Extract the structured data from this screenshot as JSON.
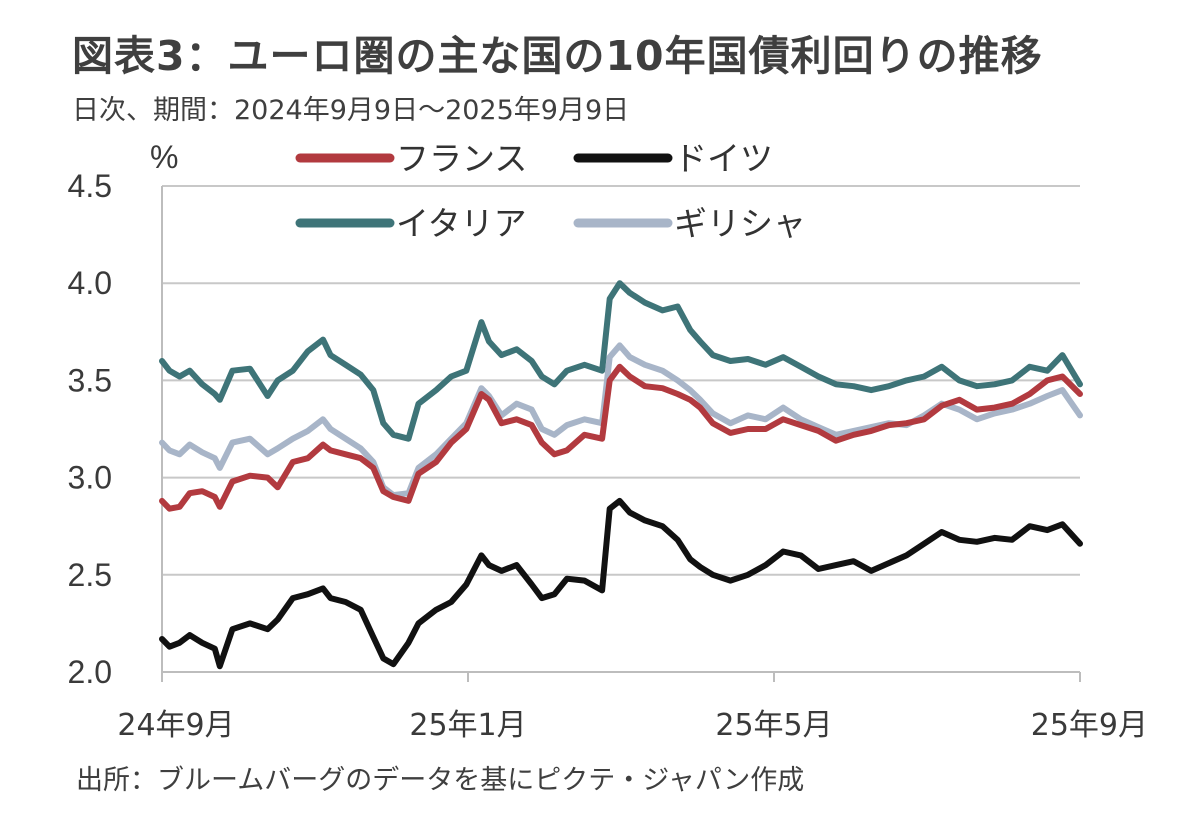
{
  "header": {
    "title": "図表3：ユーロ圏の主な国の10年国債利回りの推移",
    "subtitle": "日次、期間：2024年9月9日～2025年9月9日"
  },
  "footer": {
    "source": "出所：ブルームバーグのデータを基にピクテ・ジャパン作成"
  },
  "chart_data": {
    "type": "line",
    "title": "図表3：ユーロ圏の主な国の10年国債利回りの推移",
    "subtitle": "日次、期間：2024年9月9日～2025年9月9日",
    "ylabel": "%",
    "xlabel": "",
    "ylim": [
      2.0,
      4.5
    ],
    "yticks": [
      "2.0",
      "2.5",
      "3.0",
      "3.5",
      "4.0",
      "4.5"
    ],
    "xlim": [
      "2024-09-09",
      "2025-09-09"
    ],
    "xtick_labels": [
      "24年9月",
      "25年1月",
      "25年5月",
      "25年9月"
    ],
    "grid": true,
    "legend_position": "top",
    "series": [
      {
        "name": "フランス",
        "color": "#b23a3f",
        "points": [
          [
            "2024-09-09",
            2.88
          ],
          [
            "2024-09-12",
            2.84
          ],
          [
            "2024-09-16",
            2.85
          ],
          [
            "2024-09-20",
            2.92
          ],
          [
            "2024-09-25",
            2.93
          ],
          [
            "2024-09-30",
            2.9
          ],
          [
            "2024-10-02",
            2.85
          ],
          [
            "2024-10-07",
            2.98
          ],
          [
            "2024-10-14",
            3.01
          ],
          [
            "2024-10-21",
            3.0
          ],
          [
            "2024-10-25",
            2.95
          ],
          [
            "2024-10-31",
            3.08
          ],
          [
            "2024-11-06",
            3.1
          ],
          [
            "2024-11-12",
            3.17
          ],
          [
            "2024-11-15",
            3.14
          ],
          [
            "2024-11-21",
            3.12
          ],
          [
            "2024-11-27",
            3.1
          ],
          [
            "2024-12-02",
            3.05
          ],
          [
            "2024-12-06",
            2.93
          ],
          [
            "2024-12-10",
            2.9
          ],
          [
            "2024-12-16",
            2.88
          ],
          [
            "2024-12-20",
            3.02
          ],
          [
            "2024-12-27",
            3.08
          ],
          [
            "2025-01-02",
            3.18
          ],
          [
            "2025-01-08",
            3.25
          ],
          [
            "2025-01-14",
            3.43
          ],
          [
            "2025-01-17",
            3.4
          ],
          [
            "2025-01-22",
            3.28
          ],
          [
            "2025-01-28",
            3.3
          ],
          [
            "2025-02-03",
            3.27
          ],
          [
            "2025-02-07",
            3.18
          ],
          [
            "2025-02-12",
            3.12
          ],
          [
            "2025-02-17",
            3.14
          ],
          [
            "2025-02-24",
            3.22
          ],
          [
            "2025-03-03",
            3.2
          ],
          [
            "2025-03-06",
            3.5
          ],
          [
            "2025-03-10",
            3.57
          ],
          [
            "2025-03-14",
            3.52
          ],
          [
            "2025-03-20",
            3.47
          ],
          [
            "2025-03-27",
            3.46
          ],
          [
            "2025-04-02",
            3.43
          ],
          [
            "2025-04-07",
            3.4
          ],
          [
            "2025-04-11",
            3.36
          ],
          [
            "2025-04-16",
            3.28
          ],
          [
            "2025-04-23",
            3.23
          ],
          [
            "2025-04-30",
            3.25
          ],
          [
            "2025-05-07",
            3.25
          ],
          [
            "2025-05-14",
            3.3
          ],
          [
            "2025-05-21",
            3.27
          ],
          [
            "2025-05-28",
            3.24
          ],
          [
            "2025-06-04",
            3.19
          ],
          [
            "2025-06-11",
            3.22
          ],
          [
            "2025-06-18",
            3.24
          ],
          [
            "2025-06-25",
            3.27
          ],
          [
            "2025-07-02",
            3.28
          ],
          [
            "2025-07-09",
            3.3
          ],
          [
            "2025-07-16",
            3.37
          ],
          [
            "2025-07-23",
            3.4
          ],
          [
            "2025-07-30",
            3.35
          ],
          [
            "2025-08-06",
            3.36
          ],
          [
            "2025-08-13",
            3.38
          ],
          [
            "2025-08-20",
            3.43
          ],
          [
            "2025-08-27",
            3.5
          ],
          [
            "2025-09-02",
            3.52
          ],
          [
            "2025-09-09",
            3.43
          ]
        ]
      },
      {
        "name": "ドイツ",
        "color": "#111111",
        "points": [
          [
            "2024-09-09",
            2.17
          ],
          [
            "2024-09-12",
            2.13
          ],
          [
            "2024-09-16",
            2.15
          ],
          [
            "2024-09-20",
            2.19
          ],
          [
            "2024-09-25",
            2.15
          ],
          [
            "2024-09-30",
            2.12
          ],
          [
            "2024-10-02",
            2.03
          ],
          [
            "2024-10-07",
            2.22
          ],
          [
            "2024-10-14",
            2.25
          ],
          [
            "2024-10-21",
            2.22
          ],
          [
            "2024-10-25",
            2.27
          ],
          [
            "2024-10-31",
            2.38
          ],
          [
            "2024-11-06",
            2.4
          ],
          [
            "2024-11-12",
            2.43
          ],
          [
            "2024-11-15",
            2.38
          ],
          [
            "2024-11-21",
            2.36
          ],
          [
            "2024-11-27",
            2.32
          ],
          [
            "2024-12-02",
            2.18
          ],
          [
            "2024-12-06",
            2.07
          ],
          [
            "2024-12-10",
            2.04
          ],
          [
            "2024-12-16",
            2.15
          ],
          [
            "2024-12-20",
            2.25
          ],
          [
            "2024-12-27",
            2.32
          ],
          [
            "2025-01-02",
            2.36
          ],
          [
            "2025-01-08",
            2.45
          ],
          [
            "2025-01-14",
            2.6
          ],
          [
            "2025-01-17",
            2.55
          ],
          [
            "2025-01-22",
            2.52
          ],
          [
            "2025-01-28",
            2.55
          ],
          [
            "2025-02-03",
            2.45
          ],
          [
            "2025-02-07",
            2.38
          ],
          [
            "2025-02-12",
            2.4
          ],
          [
            "2025-02-17",
            2.48
          ],
          [
            "2025-02-24",
            2.47
          ],
          [
            "2025-03-03",
            2.42
          ],
          [
            "2025-03-06",
            2.84
          ],
          [
            "2025-03-10",
            2.88
          ],
          [
            "2025-03-14",
            2.82
          ],
          [
            "2025-03-20",
            2.78
          ],
          [
            "2025-03-27",
            2.75
          ],
          [
            "2025-04-02",
            2.68
          ],
          [
            "2025-04-07",
            2.58
          ],
          [
            "2025-04-11",
            2.54
          ],
          [
            "2025-04-16",
            2.5
          ],
          [
            "2025-04-23",
            2.47
          ],
          [
            "2025-04-30",
            2.5
          ],
          [
            "2025-05-07",
            2.55
          ],
          [
            "2025-05-14",
            2.62
          ],
          [
            "2025-05-21",
            2.6
          ],
          [
            "2025-05-28",
            2.53
          ],
          [
            "2025-06-04",
            2.55
          ],
          [
            "2025-06-11",
            2.57
          ],
          [
            "2025-06-18",
            2.52
          ],
          [
            "2025-06-25",
            2.56
          ],
          [
            "2025-07-02",
            2.6
          ],
          [
            "2025-07-09",
            2.66
          ],
          [
            "2025-07-16",
            2.72
          ],
          [
            "2025-07-23",
            2.68
          ],
          [
            "2025-07-30",
            2.67
          ],
          [
            "2025-08-06",
            2.69
          ],
          [
            "2025-08-13",
            2.68
          ],
          [
            "2025-08-20",
            2.75
          ],
          [
            "2025-08-27",
            2.73
          ],
          [
            "2025-09-02",
            2.76
          ],
          [
            "2025-09-09",
            2.66
          ]
        ]
      },
      {
        "name": "イタリア",
        "color": "#3e7478",
        "points": [
          [
            "2024-09-09",
            3.6
          ],
          [
            "2024-09-12",
            3.55
          ],
          [
            "2024-09-16",
            3.52
          ],
          [
            "2024-09-20",
            3.55
          ],
          [
            "2024-09-25",
            3.48
          ],
          [
            "2024-09-30",
            3.43
          ],
          [
            "2024-10-02",
            3.4
          ],
          [
            "2024-10-07",
            3.55
          ],
          [
            "2024-10-14",
            3.56
          ],
          [
            "2024-10-21",
            3.42
          ],
          [
            "2024-10-25",
            3.5
          ],
          [
            "2024-10-31",
            3.55
          ],
          [
            "2024-11-06",
            3.65
          ],
          [
            "2024-11-12",
            3.71
          ],
          [
            "2024-11-15",
            3.63
          ],
          [
            "2024-11-21",
            3.58
          ],
          [
            "2024-11-27",
            3.53
          ],
          [
            "2024-12-02",
            3.45
          ],
          [
            "2024-12-06",
            3.28
          ],
          [
            "2024-12-10",
            3.22
          ],
          [
            "2024-12-16",
            3.2
          ],
          [
            "2024-12-20",
            3.38
          ],
          [
            "2024-12-27",
            3.45
          ],
          [
            "2025-01-02",
            3.52
          ],
          [
            "2025-01-08",
            3.55
          ],
          [
            "2025-01-14",
            3.8
          ],
          [
            "2025-01-17",
            3.7
          ],
          [
            "2025-01-22",
            3.63
          ],
          [
            "2025-01-28",
            3.66
          ],
          [
            "2025-02-03",
            3.6
          ],
          [
            "2025-02-07",
            3.52
          ],
          [
            "2025-02-12",
            3.48
          ],
          [
            "2025-02-17",
            3.55
          ],
          [
            "2025-02-24",
            3.58
          ],
          [
            "2025-03-03",
            3.55
          ],
          [
            "2025-03-06",
            3.92
          ],
          [
            "2025-03-10",
            4.0
          ],
          [
            "2025-03-14",
            3.95
          ],
          [
            "2025-03-20",
            3.9
          ],
          [
            "2025-03-27",
            3.86
          ],
          [
            "2025-04-02",
            3.88
          ],
          [
            "2025-04-07",
            3.76
          ],
          [
            "2025-04-11",
            3.7
          ],
          [
            "2025-04-16",
            3.63
          ],
          [
            "2025-04-23",
            3.6
          ],
          [
            "2025-04-30",
            3.61
          ],
          [
            "2025-05-07",
            3.58
          ],
          [
            "2025-05-14",
            3.62
          ],
          [
            "2025-05-21",
            3.57
          ],
          [
            "2025-05-28",
            3.52
          ],
          [
            "2025-06-04",
            3.48
          ],
          [
            "2025-06-11",
            3.47
          ],
          [
            "2025-06-18",
            3.45
          ],
          [
            "2025-06-25",
            3.47
          ],
          [
            "2025-07-02",
            3.5
          ],
          [
            "2025-07-09",
            3.52
          ],
          [
            "2025-07-16",
            3.57
          ],
          [
            "2025-07-23",
            3.5
          ],
          [
            "2025-07-30",
            3.47
          ],
          [
            "2025-08-06",
            3.48
          ],
          [
            "2025-08-13",
            3.5
          ],
          [
            "2025-08-20",
            3.57
          ],
          [
            "2025-08-27",
            3.55
          ],
          [
            "2025-09-02",
            3.63
          ],
          [
            "2025-09-09",
            3.48
          ]
        ]
      },
      {
        "name": "ギリシャ",
        "color": "#a8b5c8",
        "points": [
          [
            "2024-09-09",
            3.18
          ],
          [
            "2024-09-12",
            3.14
          ],
          [
            "2024-09-16",
            3.12
          ],
          [
            "2024-09-20",
            3.17
          ],
          [
            "2024-09-25",
            3.13
          ],
          [
            "2024-09-30",
            3.1
          ],
          [
            "2024-10-02",
            3.05
          ],
          [
            "2024-10-07",
            3.18
          ],
          [
            "2024-10-14",
            3.2
          ],
          [
            "2024-10-21",
            3.12
          ],
          [
            "2024-10-25",
            3.15
          ],
          [
            "2024-10-31",
            3.2
          ],
          [
            "2024-11-06",
            3.24
          ],
          [
            "2024-11-12",
            3.3
          ],
          [
            "2024-11-15",
            3.25
          ],
          [
            "2024-11-21",
            3.2
          ],
          [
            "2024-11-27",
            3.15
          ],
          [
            "2024-12-02",
            3.08
          ],
          [
            "2024-12-06",
            2.95
          ],
          [
            "2024-12-10",
            2.91
          ],
          [
            "2024-12-16",
            2.92
          ],
          [
            "2024-12-20",
            3.05
          ],
          [
            "2024-12-27",
            3.12
          ],
          [
            "2025-01-02",
            3.2
          ],
          [
            "2025-01-08",
            3.28
          ],
          [
            "2025-01-14",
            3.46
          ],
          [
            "2025-01-17",
            3.42
          ],
          [
            "2025-01-22",
            3.32
          ],
          [
            "2025-01-28",
            3.38
          ],
          [
            "2025-02-03",
            3.35
          ],
          [
            "2025-02-07",
            3.25
          ],
          [
            "2025-02-12",
            3.22
          ],
          [
            "2025-02-17",
            3.27
          ],
          [
            "2025-02-24",
            3.3
          ],
          [
            "2025-03-03",
            3.28
          ],
          [
            "2025-03-06",
            3.62
          ],
          [
            "2025-03-10",
            3.68
          ],
          [
            "2025-03-14",
            3.62
          ],
          [
            "2025-03-20",
            3.58
          ],
          [
            "2025-03-27",
            3.55
          ],
          [
            "2025-04-02",
            3.5
          ],
          [
            "2025-04-07",
            3.45
          ],
          [
            "2025-04-11",
            3.4
          ],
          [
            "2025-04-16",
            3.33
          ],
          [
            "2025-04-23",
            3.28
          ],
          [
            "2025-04-30",
            3.32
          ],
          [
            "2025-05-07",
            3.3
          ],
          [
            "2025-05-14",
            3.36
          ],
          [
            "2025-05-21",
            3.3
          ],
          [
            "2025-05-28",
            3.26
          ],
          [
            "2025-06-04",
            3.22
          ],
          [
            "2025-06-11",
            3.24
          ],
          [
            "2025-06-18",
            3.26
          ],
          [
            "2025-06-25",
            3.28
          ],
          [
            "2025-07-02",
            3.27
          ],
          [
            "2025-07-09",
            3.32
          ],
          [
            "2025-07-16",
            3.38
          ],
          [
            "2025-07-23",
            3.35
          ],
          [
            "2025-07-30",
            3.3
          ],
          [
            "2025-08-06",
            3.33
          ],
          [
            "2025-08-13",
            3.35
          ],
          [
            "2025-08-20",
            3.38
          ],
          [
            "2025-08-27",
            3.42
          ],
          [
            "2025-09-02",
            3.45
          ],
          [
            "2025-09-09",
            3.32
          ]
        ]
      }
    ]
  }
}
